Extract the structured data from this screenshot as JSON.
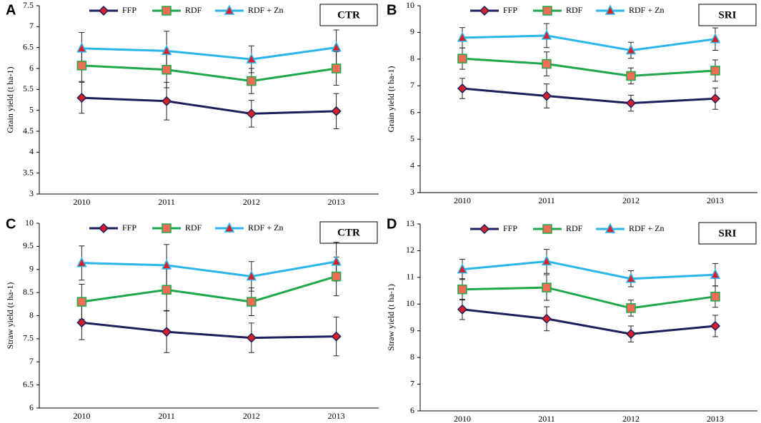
{
  "chart_data": [
    {
      "type": "line",
      "label": "A",
      "annotation": "CTR",
      "ylabel": "Grain yield (t ha-1)",
      "categories": [
        "2010",
        "2011",
        "2012",
        "2013"
      ],
      "ylim": [
        3,
        7.5
      ],
      "yticks": [
        3,
        3.5,
        4,
        4.5,
        5,
        5.5,
        6,
        6.5,
        7,
        7.5
      ],
      "legend": "top",
      "series": [
        {
          "name": "FFP",
          "color": "#1b1f5c",
          "marker": "diamond",
          "marker_color": "#d7202a",
          "values": [
            5.3,
            5.22,
            4.92,
            4.98
          ],
          "errors": [
            0.37,
            0.45,
            0.32,
            0.42
          ]
        },
        {
          "name": "RDF",
          "color": "#1ea84b",
          "marker": "square",
          "marker_color": "#ee6e55",
          "values": [
            6.07,
            5.97,
            5.7,
            6.0
          ],
          "errors": [
            0.38,
            0.43,
            0.3,
            0.4
          ]
        },
        {
          "name": "RDF + Zn",
          "color": "#2bb6ea",
          "marker": "triangle",
          "marker_color": "#d7202a",
          "values": [
            6.48,
            6.42,
            6.22,
            6.5
          ],
          "errors": [
            0.38,
            0.47,
            0.32,
            0.42
          ]
        }
      ]
    },
    {
      "type": "line",
      "label": "B",
      "annotation": "SRI",
      "ylabel": "Grain yield (t ha-1)",
      "categories": [
        "2010",
        "2011",
        "2012",
        "2013"
      ],
      "ylim": [
        3,
        10
      ],
      "yticks": [
        3,
        4,
        5,
        6,
        7,
        8,
        9,
        10
      ],
      "legend": "top",
      "series": [
        {
          "name": "FFP",
          "color": "#1b1f5c",
          "marker": "diamond",
          "marker_color": "#d7202a",
          "values": [
            6.9,
            6.62,
            6.35,
            6.52
          ],
          "errors": [
            0.38,
            0.45,
            0.3,
            0.4
          ]
        },
        {
          "name": "RDF",
          "color": "#1ea84b",
          "marker": "square",
          "marker_color": "#ee6e55",
          "values": [
            8.02,
            7.82,
            7.37,
            7.57
          ],
          "errors": [
            0.4,
            0.45,
            0.3,
            0.4
          ]
        },
        {
          "name": "RDF + Zn",
          "color": "#2bb6ea",
          "marker": "triangle",
          "marker_color": "#d7202a",
          "values": [
            8.8,
            8.88,
            8.33,
            8.75
          ],
          "errors": [
            0.38,
            0.45,
            0.3,
            0.42
          ]
        }
      ]
    },
    {
      "type": "line",
      "label": "C",
      "annotation": "CTR",
      "ylabel": "Straw yield (t ha-1)",
      "categories": [
        "2010",
        "2011",
        "2012",
        "2013"
      ],
      "ylim": [
        6,
        10
      ],
      "yticks": [
        6,
        6.5,
        7,
        7.5,
        8,
        8.5,
        9,
        9.5,
        10
      ],
      "legend": "top",
      "series": [
        {
          "name": "FFP",
          "color": "#1b1f5c",
          "marker": "diamond",
          "marker_color": "#d7202a",
          "values": [
            7.85,
            7.65,
            7.52,
            7.55
          ],
          "errors": [
            0.37,
            0.45,
            0.32,
            0.42
          ]
        },
        {
          "name": "RDF",
          "color": "#1ea84b",
          "marker": "square",
          "marker_color": "#ee6e55",
          "values": [
            8.3,
            8.56,
            8.3,
            8.85
          ],
          "errors": [
            0.38,
            0.45,
            0.3,
            0.42
          ]
        },
        {
          "name": "RDF + Zn",
          "color": "#2bb6ea",
          "marker": "triangle",
          "marker_color": "#d7202a",
          "values": [
            9.14,
            9.09,
            8.85,
            9.17
          ],
          "errors": [
            0.37,
            0.45,
            0.32,
            0.42
          ]
        }
      ]
    },
    {
      "type": "line",
      "label": "D",
      "annotation": "SRI",
      "ylabel": "Straw yield (t ha-1)",
      "categories": [
        "2010",
        "2011",
        "2012",
        "2013"
      ],
      "ylim": [
        6,
        13
      ],
      "yticks": [
        6,
        7,
        8,
        9,
        10,
        11,
        12,
        13
      ],
      "legend": "top",
      "series": [
        {
          "name": "FFP",
          "color": "#1b1f5c",
          "marker": "diamond",
          "marker_color": "#d7202a",
          "values": [
            9.8,
            9.45,
            8.88,
            9.18
          ],
          "errors": [
            0.38,
            0.45,
            0.3,
            0.4
          ]
        },
        {
          "name": "RDF",
          "color": "#1ea84b",
          "marker": "square",
          "marker_color": "#ee6e55",
          "values": [
            10.55,
            10.62,
            9.85,
            10.28
          ],
          "errors": [
            0.4,
            0.48,
            0.3,
            0.4
          ]
        },
        {
          "name": "RDF + Zn",
          "color": "#2bb6ea",
          "marker": "triangle",
          "marker_color": "#d7202a",
          "values": [
            11.3,
            11.6,
            10.95,
            11.1
          ],
          "errors": [
            0.38,
            0.45,
            0.3,
            0.42
          ]
        }
      ]
    }
  ]
}
